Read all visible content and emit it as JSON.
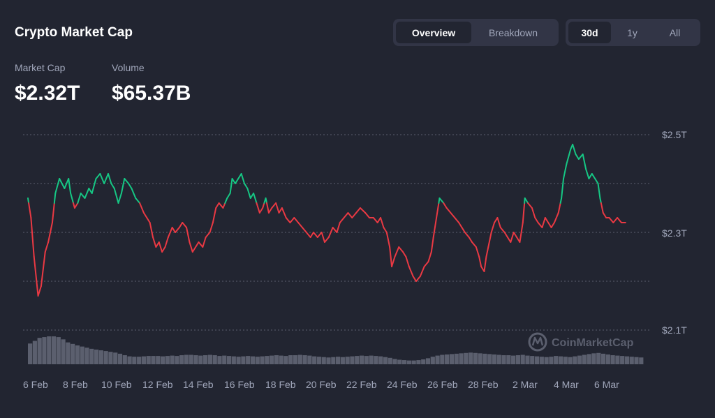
{
  "header": {
    "title": "Crypto Market Cap",
    "view_tabs": [
      {
        "label": "Overview",
        "active": true
      },
      {
        "label": "Breakdown",
        "active": false
      }
    ],
    "range_tabs": [
      {
        "label": "30d",
        "active": true
      },
      {
        "label": "1y",
        "active": false
      },
      {
        "label": "All",
        "active": false
      }
    ]
  },
  "stats": {
    "market_cap": {
      "label": "Market Cap",
      "value": "$2.32T"
    },
    "volume": {
      "label": "Volume",
      "value": "$65.37B"
    }
  },
  "watermark": {
    "text": "CoinMarketCap"
  },
  "colors": {
    "background": "#222531",
    "up": "#16c784",
    "down": "#ea3943",
    "volume_bar": "#5b5f6e",
    "muted_text": "#a1a7bb"
  },
  "chart_data": {
    "type": "line",
    "title": "",
    "xlabel": "",
    "ylabel": "",
    "x_tick_labels": [
      "6 Feb",
      "8 Feb",
      "10 Feb",
      "12 Feb",
      "14 Feb",
      "16 Feb",
      "18 Feb",
      "20 Feb",
      "22 Feb",
      "24 Feb",
      "26 Feb",
      "28 Feb",
      "2 Mar",
      "4 Mar",
      "6 Mar"
    ],
    "y_tick_labels": [
      "$2.5T",
      "$2.3T",
      "$2.1T"
    ],
    "y_gridlines": [
      2.5,
      2.4,
      2.3,
      2.2,
      2.1
    ],
    "ylim": [
      2.1,
      2.5
    ],
    "x_range": [
      0,
      30.3
    ],
    "reference_value": 2.36,
    "series": [
      {
        "values": [
          [
            0.0,
            2.37
          ],
          [
            0.15,
            2.33
          ],
          [
            0.3,
            2.25
          ],
          [
            0.5,
            2.17
          ],
          [
            0.65,
            2.19
          ],
          [
            0.85,
            2.26
          ],
          [
            1.0,
            2.28
          ],
          [
            1.2,
            2.32
          ],
          [
            1.35,
            2.38
          ],
          [
            1.55,
            2.41
          ],
          [
            1.8,
            2.39
          ],
          [
            2.0,
            2.41
          ],
          [
            2.1,
            2.38
          ],
          [
            2.3,
            2.35
          ],
          [
            2.45,
            2.36
          ],
          [
            2.6,
            2.38
          ],
          [
            2.8,
            2.37
          ],
          [
            3.0,
            2.39
          ],
          [
            3.15,
            2.38
          ],
          [
            3.35,
            2.41
          ],
          [
            3.55,
            2.42
          ],
          [
            3.75,
            2.4
          ],
          [
            3.95,
            2.42
          ],
          [
            4.1,
            2.4
          ],
          [
            4.25,
            2.39
          ],
          [
            4.45,
            2.36
          ],
          [
            4.6,
            2.38
          ],
          [
            4.75,
            2.41
          ],
          [
            4.95,
            2.4
          ],
          [
            5.1,
            2.39
          ],
          [
            5.3,
            2.37
          ],
          [
            5.5,
            2.36
          ],
          [
            5.7,
            2.34
          ],
          [
            5.85,
            2.33
          ],
          [
            6.0,
            2.32
          ],
          [
            6.15,
            2.29
          ],
          [
            6.3,
            2.27
          ],
          [
            6.45,
            2.28
          ],
          [
            6.6,
            2.26
          ],
          [
            6.75,
            2.27
          ],
          [
            6.9,
            2.29
          ],
          [
            7.1,
            2.31
          ],
          [
            7.25,
            2.3
          ],
          [
            7.45,
            2.31
          ],
          [
            7.6,
            2.32
          ],
          [
            7.8,
            2.31
          ],
          [
            7.95,
            2.28
          ],
          [
            8.1,
            2.26
          ],
          [
            8.25,
            2.27
          ],
          [
            8.4,
            2.28
          ],
          [
            8.6,
            2.27
          ],
          [
            8.75,
            2.29
          ],
          [
            8.95,
            2.3
          ],
          [
            9.1,
            2.32
          ],
          [
            9.25,
            2.35
          ],
          [
            9.4,
            2.36
          ],
          [
            9.6,
            2.35
          ],
          [
            9.8,
            2.37
          ],
          [
            9.95,
            2.38
          ],
          [
            10.05,
            2.41
          ],
          [
            10.2,
            2.4
          ],
          [
            10.35,
            2.41
          ],
          [
            10.5,
            2.42
          ],
          [
            10.65,
            2.4
          ],
          [
            10.8,
            2.39
          ],
          [
            10.95,
            2.37
          ],
          [
            11.1,
            2.38
          ],
          [
            11.25,
            2.36
          ],
          [
            11.4,
            2.34
          ],
          [
            11.55,
            2.35
          ],
          [
            11.7,
            2.37
          ],
          [
            11.85,
            2.34
          ],
          [
            12.0,
            2.35
          ],
          [
            12.2,
            2.36
          ],
          [
            12.35,
            2.34
          ],
          [
            12.5,
            2.35
          ],
          [
            12.7,
            2.33
          ],
          [
            12.9,
            2.32
          ],
          [
            13.1,
            2.33
          ],
          [
            13.3,
            2.32
          ],
          [
            13.5,
            2.31
          ],
          [
            13.7,
            2.3
          ],
          [
            13.9,
            2.29
          ],
          [
            14.05,
            2.3
          ],
          [
            14.25,
            2.29
          ],
          [
            14.45,
            2.3
          ],
          [
            14.6,
            2.28
          ],
          [
            14.8,
            2.29
          ],
          [
            15.0,
            2.31
          ],
          [
            15.2,
            2.3
          ],
          [
            15.35,
            2.32
          ],
          [
            15.55,
            2.33
          ],
          [
            15.75,
            2.34
          ],
          [
            15.95,
            2.33
          ],
          [
            16.15,
            2.34
          ],
          [
            16.35,
            2.35
          ],
          [
            16.6,
            2.34
          ],
          [
            16.8,
            2.33
          ],
          [
            17.0,
            2.33
          ],
          [
            17.2,
            2.32
          ],
          [
            17.35,
            2.33
          ],
          [
            17.5,
            2.31
          ],
          [
            17.65,
            2.3
          ],
          [
            17.8,
            2.27
          ],
          [
            17.9,
            2.23
          ],
          [
            18.05,
            2.25
          ],
          [
            18.25,
            2.27
          ],
          [
            18.45,
            2.26
          ],
          [
            18.6,
            2.25
          ],
          [
            18.75,
            2.23
          ],
          [
            18.95,
            2.21
          ],
          [
            19.1,
            2.2
          ],
          [
            19.3,
            2.21
          ],
          [
            19.5,
            2.23
          ],
          [
            19.7,
            2.24
          ],
          [
            19.85,
            2.26
          ],
          [
            19.95,
            2.29
          ],
          [
            20.1,
            2.33
          ],
          [
            20.25,
            2.37
          ],
          [
            20.45,
            2.36
          ],
          [
            20.6,
            2.35
          ],
          [
            20.8,
            2.34
          ],
          [
            21.0,
            2.33
          ],
          [
            21.2,
            2.32
          ],
          [
            21.35,
            2.31
          ],
          [
            21.5,
            2.3
          ],
          [
            21.7,
            2.29
          ],
          [
            21.85,
            2.28
          ],
          [
            22.05,
            2.27
          ],
          [
            22.2,
            2.25
          ],
          [
            22.3,
            2.23
          ],
          [
            22.45,
            2.22
          ],
          [
            22.55,
            2.25
          ],
          [
            22.65,
            2.27
          ],
          [
            22.8,
            2.3
          ],
          [
            22.95,
            2.32
          ],
          [
            23.1,
            2.33
          ],
          [
            23.25,
            2.31
          ],
          [
            23.45,
            2.3
          ],
          [
            23.6,
            2.29
          ],
          [
            23.75,
            2.28
          ],
          [
            23.9,
            2.3
          ],
          [
            24.05,
            2.29
          ],
          [
            24.2,
            2.28
          ],
          [
            24.35,
            2.32
          ],
          [
            24.45,
            2.37
          ],
          [
            24.6,
            2.36
          ],
          [
            24.8,
            2.35
          ],
          [
            24.95,
            2.33
          ],
          [
            25.1,
            2.32
          ],
          [
            25.3,
            2.31
          ],
          [
            25.45,
            2.33
          ],
          [
            25.6,
            2.32
          ],
          [
            25.75,
            2.31
          ],
          [
            25.9,
            2.32
          ],
          [
            26.1,
            2.34
          ],
          [
            26.25,
            2.37
          ],
          [
            26.35,
            2.41
          ],
          [
            26.5,
            2.44
          ],
          [
            26.7,
            2.47
          ],
          [
            26.8,
            2.48
          ],
          [
            26.95,
            2.46
          ],
          [
            27.1,
            2.45
          ],
          [
            27.3,
            2.46
          ],
          [
            27.45,
            2.43
          ],
          [
            27.6,
            2.41
          ],
          [
            27.75,
            2.42
          ],
          [
            27.9,
            2.41
          ],
          [
            28.05,
            2.4
          ],
          [
            28.15,
            2.37
          ],
          [
            28.3,
            2.34
          ],
          [
            28.45,
            2.33
          ],
          [
            28.6,
            2.33
          ],
          [
            28.8,
            2.32
          ],
          [
            29.0,
            2.33
          ],
          [
            29.2,
            2.32
          ],
          [
            29.4,
            2.32
          ]
        ]
      }
    ],
    "volume": [
      0.55,
      0.62,
      0.7,
      0.72,
      0.74,
      0.74,
      0.72,
      0.66,
      0.58,
      0.54,
      0.5,
      0.47,
      0.44,
      0.41,
      0.39,
      0.37,
      0.35,
      0.33,
      0.31,
      0.28,
      0.24,
      0.21,
      0.2,
      0.2,
      0.21,
      0.22,
      0.22,
      0.22,
      0.21,
      0.22,
      0.23,
      0.22,
      0.24,
      0.25,
      0.25,
      0.24,
      0.23,
      0.24,
      0.25,
      0.24,
      0.22,
      0.23,
      0.22,
      0.21,
      0.2,
      0.21,
      0.22,
      0.21,
      0.2,
      0.21,
      0.22,
      0.23,
      0.24,
      0.23,
      0.22,
      0.24,
      0.24,
      0.25,
      0.24,
      0.23,
      0.21,
      0.2,
      0.19,
      0.18,
      0.19,
      0.2,
      0.19,
      0.2,
      0.21,
      0.22,
      0.23,
      0.22,
      0.23,
      0.22,
      0.21,
      0.19,
      0.17,
      0.14,
      0.12,
      0.11,
      0.1,
      0.1,
      0.11,
      0.13,
      0.16,
      0.2,
      0.23,
      0.25,
      0.26,
      0.27,
      0.28,
      0.29,
      0.3,
      0.31,
      0.3,
      0.29,
      0.28,
      0.27,
      0.26,
      0.25,
      0.24,
      0.24,
      0.23,
      0.24,
      0.25,
      0.23,
      0.22,
      0.21,
      0.2,
      0.19,
      0.2,
      0.22,
      0.21,
      0.2,
      0.19,
      0.21,
      0.23,
      0.25,
      0.27,
      0.29,
      0.3,
      0.28,
      0.26,
      0.24,
      0.23,
      0.22,
      0.21,
      0.2,
      0.19,
      0.18
    ]
  }
}
